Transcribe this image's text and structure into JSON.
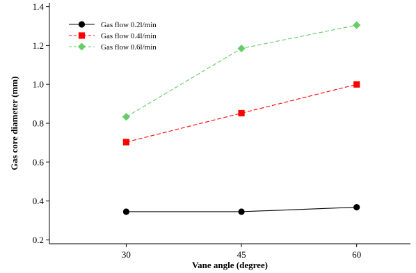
{
  "chart_data": {
    "type": "line",
    "title": "",
    "xlabel": "Vane angle (degree)",
    "ylabel": "Gas core diameter (mm)",
    "x": [
      30,
      45,
      60
    ],
    "x_tick_labels": [
      "30",
      "45",
      "60"
    ],
    "xlim": [
      20,
      67
    ],
    "ylim": [
      0.18,
      1.42
    ],
    "y_ticks": [
      0.2,
      0.4,
      0.6,
      0.8,
      1.0,
      1.2,
      1.4
    ],
    "y_tick_labels": [
      "0.2",
      "0.4",
      "0.6",
      "0.8",
      "1.0",
      "1.2",
      "1.4"
    ],
    "grid": false,
    "legend_position": "top-left",
    "series": [
      {
        "name": "Gas flow 0.2l/min",
        "values": [
          0.345,
          0.345,
          0.368
        ],
        "color": "#000000",
        "marker": "circle",
        "line_style": "solid"
      },
      {
        "name": "Gas flow 0.4l/min",
        "values": [
          0.703,
          0.852,
          1.0
        ],
        "color": "#ff0000",
        "marker": "square",
        "line_style": "dashed"
      },
      {
        "name": "Gas flow 0.6l/min",
        "values": [
          0.833,
          1.185,
          1.305
        ],
        "color": "#66cc66",
        "marker": "diamond",
        "line_style": "dashed"
      }
    ]
  }
}
